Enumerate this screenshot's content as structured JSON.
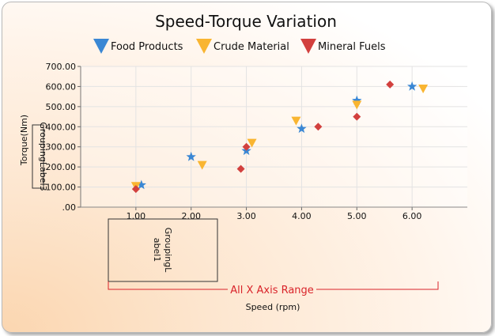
{
  "chart_data": {
    "type": "scatter",
    "title": "Speed-Torque Variation",
    "xlabel": "Speed (rpm)",
    "ylabel": "Torque(Nm)",
    "xlim": [
      0,
      7
    ],
    "ylim": [
      0,
      700
    ],
    "x_ticks": [
      "1.00",
      "2.00",
      "3.00",
      "4.00",
      "5.00",
      "6.00"
    ],
    "y_ticks": [
      ".00",
      "100.00",
      "200.00",
      "300.00",
      "400.00",
      "500.00",
      "600.00",
      "700.00"
    ],
    "grid": true,
    "legend_position": "top",
    "series": [
      {
        "name": "Food Products",
        "legend_marker": "triangle-down",
        "marker": "star",
        "color": "#3a87d4",
        "points": [
          [
            1.1,
            110
          ],
          [
            2.0,
            250
          ],
          [
            3.0,
            280
          ],
          [
            4.0,
            390
          ],
          [
            5.0,
            530
          ],
          [
            6.0,
            600
          ]
        ]
      },
      {
        "name": "Crude Material",
        "legend_marker": "triangle-down",
        "marker": "triangle-down",
        "color": "#f9b531",
        "points": [
          [
            1.0,
            105
          ],
          [
            2.2,
            210
          ],
          [
            3.1,
            320
          ],
          [
            3.9,
            430
          ],
          [
            5.0,
            510
          ],
          [
            6.2,
            590
          ]
        ]
      },
      {
        "name": "Mineral Fuels",
        "legend_marker": "triangle-down",
        "marker": "diamond",
        "color": "#d2403e",
        "points": [
          [
            1.0,
            90
          ],
          [
            2.9,
            190
          ],
          [
            3.0,
            300
          ],
          [
            4.3,
            400
          ],
          [
            5.0,
            450
          ],
          [
            5.6,
            610
          ]
        ]
      }
    ],
    "annotations": {
      "x_grouping_label": "GroupingLabel1",
      "y_grouping_label": "GroupingLabel3",
      "x_range_label": "All X Axis Range"
    }
  }
}
